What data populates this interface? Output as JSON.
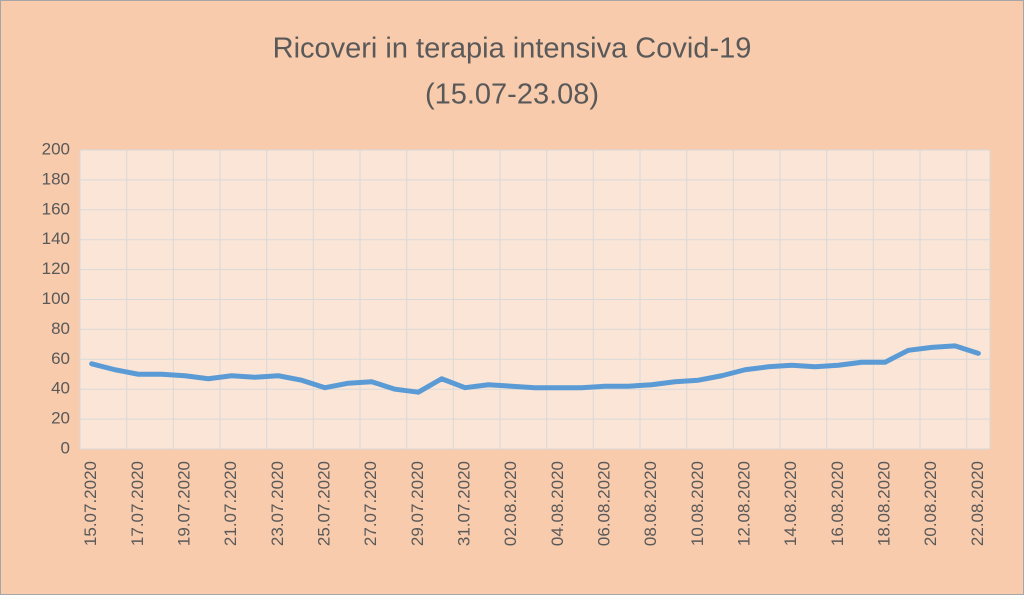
{
  "chart_data": {
    "type": "line",
    "title": "Ricoveri in terapia intensiva Covid-19",
    "subtitle": "(15.07-23.08)",
    "categories": [
      "15.07.2020",
      null,
      "17.07.2020",
      null,
      "19.07.2020",
      null,
      "21.07.2020",
      null,
      "23.07.2020",
      null,
      "25.07.2020",
      null,
      "27.07.2020",
      null,
      "29.07.2020",
      null,
      "31.07.2020",
      null,
      "02.08.2020",
      null,
      "04.08.2020",
      null,
      "06.08.2020",
      null,
      "08.08.2020",
      null,
      "10.08.2020",
      null,
      "12.08.2020",
      null,
      "14.08.2020",
      null,
      "16.08.2020",
      null,
      "18.08.2020",
      null,
      "20.08.2020",
      null,
      "22.08.2020"
    ],
    "values": [
      57,
      53,
      50,
      50,
      49,
      47,
      49,
      48,
      49,
      46,
      41,
      44,
      45,
      40,
      38,
      47,
      41,
      43,
      42,
      41,
      41,
      41,
      42,
      42,
      43,
      45,
      46,
      49,
      53,
      55,
      56,
      55,
      56,
      58,
      58,
      66,
      68,
      69,
      64
    ],
    "color": "#5b9bd5",
    "ylim": [
      0,
      200
    ],
    "yticks": [
      0,
      20,
      40,
      60,
      80,
      100,
      120,
      140,
      160,
      180,
      200
    ],
    "grid": true
  }
}
